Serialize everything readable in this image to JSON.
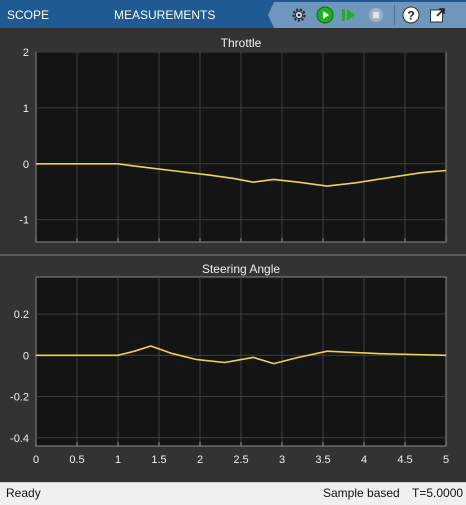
{
  "toolstrip": {
    "tabs": [
      {
        "label": "SCOPE"
      },
      {
        "label": "MEASUREMENTS"
      }
    ],
    "quick_access": [
      {
        "icon": "settings-gear-icon"
      },
      {
        "icon": "run-icon"
      },
      {
        "icon": "step-forward-icon"
      },
      {
        "icon": "stop-icon"
      },
      {
        "icon": "help-icon"
      },
      {
        "icon": "undock-icon"
      }
    ],
    "colors": {
      "tab_bar": "#1f5a93",
      "quick_access_bar": "#6f97bd",
      "run_green": "#1bb21b"
    }
  },
  "status_bar": {
    "state": "Ready",
    "mode": "Sample based",
    "time": "T=5.0000"
  },
  "colors": {
    "trace": "#f3d24a",
    "axes_bg": "#141414",
    "grid": "#3e3e3e",
    "tick_text": "#f0f0f0"
  },
  "chart_data": [
    {
      "type": "line",
      "title": "Throttle",
      "xlabel": "",
      "ylabel": "",
      "xlim": [
        0,
        5
      ],
      "ylim": [
        -1.4,
        2
      ],
      "yticks": [
        "2",
        "1",
        "0",
        "-1"
      ],
      "ytick_values": [
        2,
        1,
        0,
        -1
      ],
      "xticks": [
        0,
        0.5,
        1,
        1.5,
        2,
        2.5,
        3,
        3.5,
        4,
        4.5,
        5
      ],
      "grid": true,
      "series": [
        {
          "x": [
            0,
            1.0,
            1.3,
            1.7,
            2.1,
            2.4,
            2.65,
            2.9,
            3.2,
            3.55,
            3.9,
            4.3,
            4.7,
            5.0
          ],
          "y": [
            0,
            0,
            -0.06,
            -0.13,
            -0.2,
            -0.26,
            -0.33,
            -0.28,
            -0.33,
            -0.4,
            -0.34,
            -0.25,
            -0.16,
            -0.12
          ]
        }
      ]
    },
    {
      "type": "line",
      "title": "Steering Angle",
      "xlabel": "",
      "ylabel": "",
      "xlim": [
        0,
        5
      ],
      "ylim": [
        -0.44,
        0.38
      ],
      "yticks": [
        "0.2",
        "0",
        "-0.2",
        "-0.4"
      ],
      "ytick_values": [
        0.2,
        0,
        -0.2,
        -0.4
      ],
      "xticks": [
        "0",
        "0.5",
        "1",
        "1.5",
        "2",
        "2.5",
        "3",
        "3.5",
        "4",
        "4.5",
        "5"
      ],
      "xtick_values": [
        0,
        0.5,
        1,
        1.5,
        2,
        2.5,
        3,
        3.5,
        4,
        4.5,
        5
      ],
      "grid": true,
      "series": [
        {
          "x": [
            0,
            1.0,
            1.2,
            1.4,
            1.65,
            1.95,
            2.3,
            2.65,
            2.9,
            3.2,
            3.55,
            3.8,
            4.2,
            4.6,
            5.0
          ],
          "y": [
            0,
            0,
            0.02,
            0.045,
            0.01,
            -0.02,
            -0.035,
            -0.01,
            -0.04,
            -0.01,
            0.02,
            0.015,
            0.008,
            0.004,
            0.0
          ]
        }
      ]
    }
  ]
}
